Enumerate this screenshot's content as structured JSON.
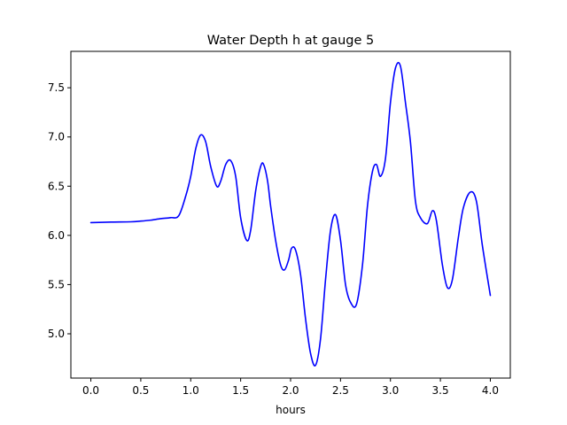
{
  "chart_data": {
    "type": "line",
    "title": "Water Depth h at gauge 5",
    "xlabel": "hours",
    "ylabel": "",
    "xlim": [
      -0.2,
      4.2
    ],
    "ylim": [
      4.55,
      7.87
    ],
    "xticks": [
      0.0,
      0.5,
      1.0,
      1.5,
      2.0,
      2.5,
      3.0,
      3.5,
      4.0
    ],
    "xtick_labels": [
      "0.0",
      "0.5",
      "1.0",
      "1.5",
      "2.0",
      "2.5",
      "3.0",
      "3.5",
      "4.0"
    ],
    "yticks": [
      5.0,
      5.5,
      6.0,
      6.5,
      7.0,
      7.5
    ],
    "ytick_labels": [
      "5.0",
      "5.5",
      "6.0",
      "6.5",
      "7.0",
      "7.5"
    ],
    "grid": false,
    "series": [
      {
        "color": "#0000ff",
        "x": [
          0.0,
          0.2,
          0.4,
          0.5,
          0.6,
          0.7,
          0.8,
          0.88,
          0.95,
          1.0,
          1.05,
          1.1,
          1.15,
          1.2,
          1.26,
          1.3,
          1.35,
          1.4,
          1.45,
          1.5,
          1.56,
          1.6,
          1.65,
          1.7,
          1.73,
          1.77,
          1.8,
          1.85,
          1.9,
          1.94,
          1.98,
          2.01,
          2.05,
          2.1,
          2.15,
          2.2,
          2.25,
          2.3,
          2.35,
          2.4,
          2.45,
          2.5,
          2.55,
          2.6,
          2.66,
          2.72,
          2.77,
          2.82,
          2.86,
          2.9,
          2.95,
          3.0,
          3.05,
          3.1,
          3.15,
          3.2,
          3.25,
          3.3,
          3.37,
          3.42,
          3.46,
          3.52,
          3.57,
          3.62,
          3.68,
          3.73,
          3.8,
          3.86,
          3.92,
          4.0
        ],
        "y": [
          6.13,
          6.135,
          6.138,
          6.145,
          6.155,
          6.17,
          6.18,
          6.2,
          6.4,
          6.6,
          6.88,
          7.02,
          6.95,
          6.7,
          6.5,
          6.55,
          6.72,
          6.76,
          6.6,
          6.18,
          5.95,
          6.05,
          6.45,
          6.7,
          6.72,
          6.55,
          6.3,
          5.95,
          5.7,
          5.65,
          5.75,
          5.87,
          5.85,
          5.6,
          5.15,
          4.8,
          4.68,
          4.95,
          5.55,
          6.05,
          6.21,
          5.95,
          5.5,
          5.32,
          5.3,
          5.7,
          6.3,
          6.65,
          6.72,
          6.6,
          6.78,
          7.35,
          7.7,
          7.72,
          7.35,
          6.95,
          6.35,
          6.18,
          6.12,
          6.25,
          6.15,
          5.7,
          5.47,
          5.55,
          5.98,
          6.28,
          6.44,
          6.35,
          5.9,
          5.39
        ]
      }
    ]
  }
}
